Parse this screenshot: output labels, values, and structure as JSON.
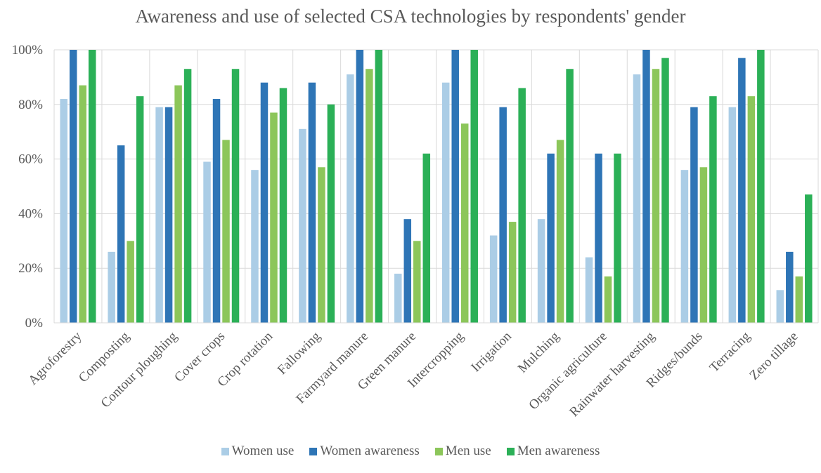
{
  "chart_data": {
    "type": "bar",
    "title": "Awareness and use of selected CSA technologies by respondents' gender",
    "categories": [
      "Agroforestry",
      "Composting",
      "Contour ploughing",
      "Cover crops",
      "Crop rotation",
      "Fallowing",
      "Farmyard manure",
      "Green manure",
      "Intercropping",
      "Irrigation",
      "Mulching",
      "Organic agriculture",
      "Rainwater harvesting",
      "Ridges/bunds",
      "Terracing",
      "Zero tillage"
    ],
    "series": [
      {
        "name": "Women use",
        "color": "#abcde6",
        "values": [
          82,
          26,
          79,
          59,
          56,
          71,
          91,
          18,
          88,
          32,
          38,
          24,
          91,
          56,
          79,
          12
        ]
      },
      {
        "name": "Women awareness",
        "color": "#2e75b6",
        "values": [
          100,
          65,
          79,
          82,
          88,
          88,
          100,
          38,
          100,
          79,
          62,
          62,
          100,
          79,
          97,
          26
        ]
      },
      {
        "name": "Men use",
        "color": "#8cc65a",
        "values": [
          87,
          30,
          87,
          67,
          77,
          57,
          93,
          30,
          73,
          37,
          67,
          17,
          93,
          57,
          83,
          17
        ]
      },
      {
        "name": "Men awareness",
        "color": "#2bb057",
        "values": [
          100,
          83,
          93,
          93,
          86,
          80,
          100,
          62,
          100,
          86,
          93,
          62,
          97,
          83,
          100,
          47
        ]
      }
    ],
    "ylim": [
      0,
      100
    ],
    "yticks": [
      "0%",
      "20%",
      "40%",
      "60%",
      "80%",
      "100%"
    ],
    "xlabel": "",
    "ylabel": "",
    "grid": true,
    "legend_position": "bottom"
  }
}
